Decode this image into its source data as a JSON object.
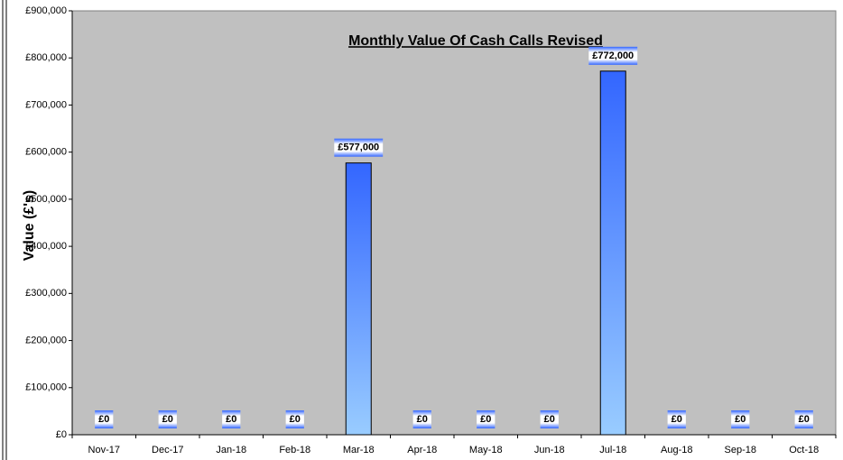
{
  "chart_data": {
    "type": "bar",
    "title": "Monthly Value Of Cash Calls Revised",
    "y_label": "Value (£'s)",
    "categories": [
      "Nov-17",
      "Dec-17",
      "Jan-18",
      "Feb-18",
      "Mar-18",
      "Apr-18",
      "May-18",
      "Jun-18",
      "Jul-18",
      "Aug-18",
      "Sep-18",
      "Oct-18"
    ],
    "values": [
      0,
      0,
      0,
      0,
      577000,
      0,
      0,
      0,
      772000,
      0,
      0,
      0
    ],
    "value_labels": [
      "£0",
      "£0",
      "£0",
      "£0",
      "£577,000",
      "£0",
      "£0",
      "£0",
      "£772,000",
      "£0",
      "£0",
      "£0"
    ],
    "color": "#3366ff",
    "ylim": [
      0,
      900000
    ],
    "yticks": [
      {
        "value": 0,
        "label": "£0"
      },
      {
        "value": 100000,
        "label": "£100,000"
      },
      {
        "value": 200000,
        "label": "£200,000"
      },
      {
        "value": 300000,
        "label": "£300,000"
      },
      {
        "value": 400000,
        "label": "£400,000"
      },
      {
        "value": 500000,
        "label": "£500,000"
      },
      {
        "value": 600000,
        "label": "£600,000"
      },
      {
        "value": 700000,
        "label": "£700,000"
      },
      {
        "value": 800000,
        "label": "£800,000"
      },
      {
        "value": 900000,
        "label": "£900,000"
      }
    ],
    "grid": false
  }
}
